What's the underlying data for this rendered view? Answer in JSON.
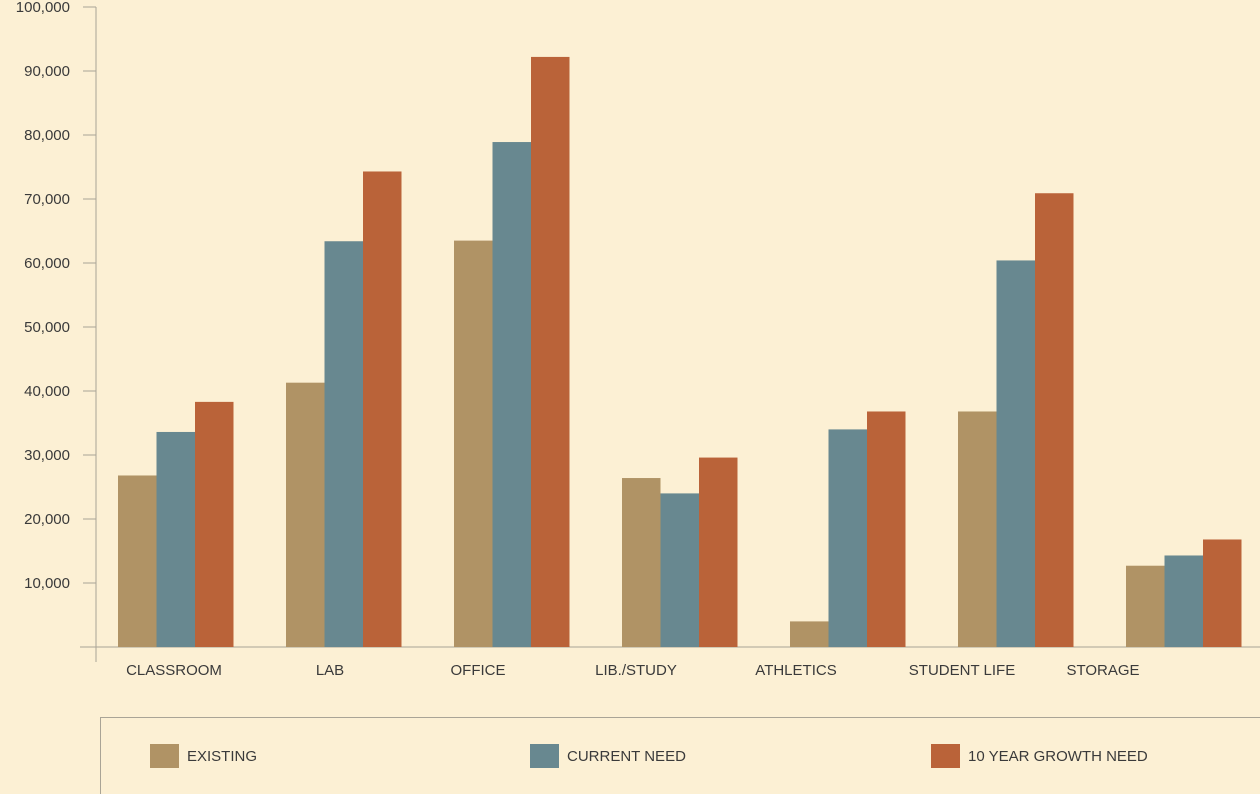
{
  "chart_data": {
    "type": "bar",
    "categories": [
      "CLASSROOM",
      "LAB",
      "OFFICE",
      "LIB./STUDY",
      "ATHLETICS",
      "STUDENT LIFE",
      "STORAGE"
    ],
    "series": [
      {
        "name": "EXISTING",
        "color": "#b09365",
        "values": [
          26800,
          41300,
          63500,
          26400,
          4000,
          36800,
          12700
        ]
      },
      {
        "name": "CURRENT NEED",
        "color": "#688890",
        "values": [
          33600,
          63400,
          78900,
          24000,
          34000,
          60400,
          14300
        ]
      },
      {
        "name": "10 YEAR GROWTH NEED",
        "color": "#ba6339",
        "values": [
          38300,
          74300,
          92200,
          29600,
          36800,
          70900,
          16800
        ]
      }
    ],
    "y_ticks": [
      "10,000",
      "20,000",
      "30,000",
      "40,000",
      "50,000",
      "60,000",
      "70,000",
      "80,000",
      "90,000",
      "100,000"
    ],
    "ylim": [
      0,
      100000
    ],
    "title": "",
    "xlabel": "",
    "ylabel": "",
    "grid": false,
    "legend_position": "bottom"
  }
}
